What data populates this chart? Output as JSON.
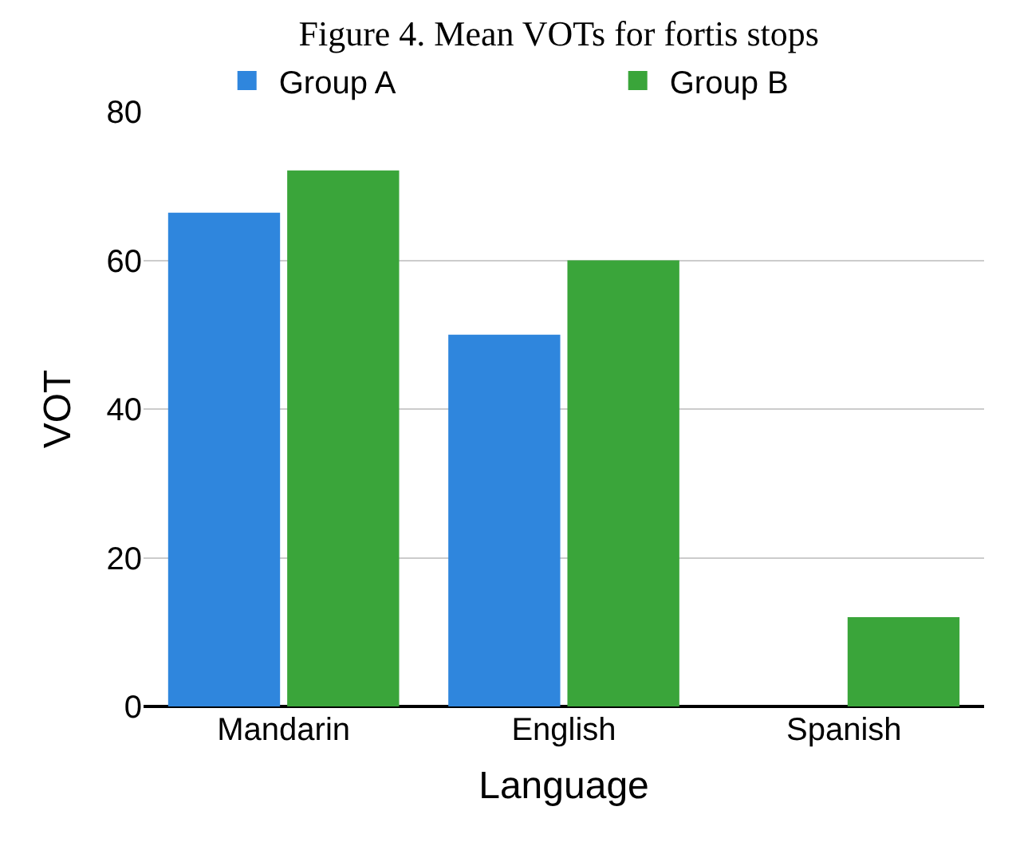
{
  "chart_data": {
    "type": "bar",
    "title": "Figure 4. Mean VOTs for fortis stops",
    "xlabel": "Language",
    "ylabel": "VOT",
    "categories": [
      "Mandarin",
      "English",
      "Spanish"
    ],
    "series": [
      {
        "name": "Group A",
        "color": "#2f86dd",
        "values": [
          66.4,
          50,
          null
        ]
      },
      {
        "name": "Group B",
        "color": "#3aa53a",
        "values": [
          72.1,
          60,
          12
        ]
      }
    ],
    "ylim": [
      0,
      80
    ],
    "yticks": [
      0,
      20,
      40,
      60,
      80
    ],
    "grid": "y",
    "legend": "top"
  }
}
